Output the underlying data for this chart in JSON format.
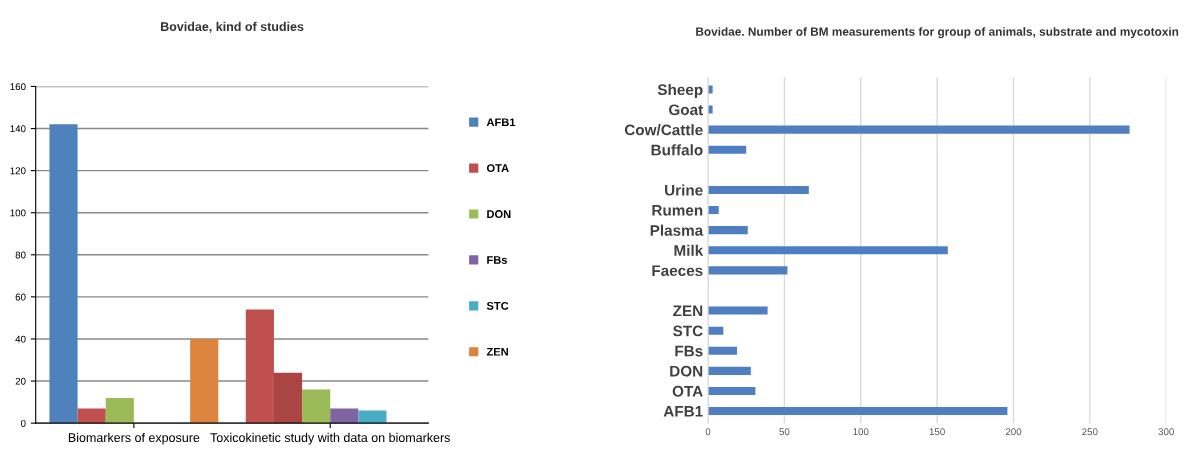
{
  "chart_data": [
    {
      "type": "bar",
      "title": "Bovidae, kind of studies",
      "categories": [
        "Biomarkers of exposure",
        "Toxicokinetic study with data on biomarkers"
      ],
      "series": [
        {
          "name": "AFB1",
          "color": "#4f81bd",
          "colors": [
            "#4f81bd",
            "#c0504d"
          ],
          "values": [
            142,
            54
          ]
        },
        {
          "name": "OTA",
          "color": "#c0504d",
          "colors": [
            "#c0504d",
            "#aa4543"
          ],
          "values": [
            7,
            24
          ]
        },
        {
          "name": "DON",
          "color": "#9bbb59",
          "values": [
            12,
            16
          ]
        },
        {
          "name": "FBs",
          "color": "#8064a2",
          "values": [
            0,
            7
          ]
        },
        {
          "name": "STC",
          "color": "#4bacc6",
          "values": [
            0,
            6
          ]
        },
        {
          "name": "ZEN",
          "color": "#dd843e",
          "values": [
            40,
            0
          ]
        }
      ],
      "ylim": [
        0,
        160
      ],
      "yticks": [
        0,
        20,
        40,
        60,
        80,
        100,
        120,
        140,
        160
      ],
      "grid": "y",
      "legend": "right"
    },
    {
      "type": "bar",
      "orientation": "horizontal",
      "title": "Bovidae. Number of BM measurements for group of animals, substrate and mycotoxin",
      "categories": [
        "Sheep",
        "Goat",
        "Cow/Cattle",
        "Buffalo",
        null,
        "Urine",
        "Rumen",
        "Plasma",
        "Milk",
        "Faeces",
        null,
        "ZEN",
        "STC",
        "FBs",
        "DON",
        "OTA",
        "AFB1"
      ],
      "values": [
        3,
        3,
        276,
        25,
        null,
        66,
        7,
        26,
        157,
        52,
        null,
        39,
        10,
        19,
        28,
        31,
        196
      ],
      "color": "#4f7fc0",
      "xlim": [
        0,
        300
      ],
      "xticks": [
        0,
        50,
        100,
        150,
        200,
        250,
        300
      ],
      "grid": "x"
    }
  ]
}
